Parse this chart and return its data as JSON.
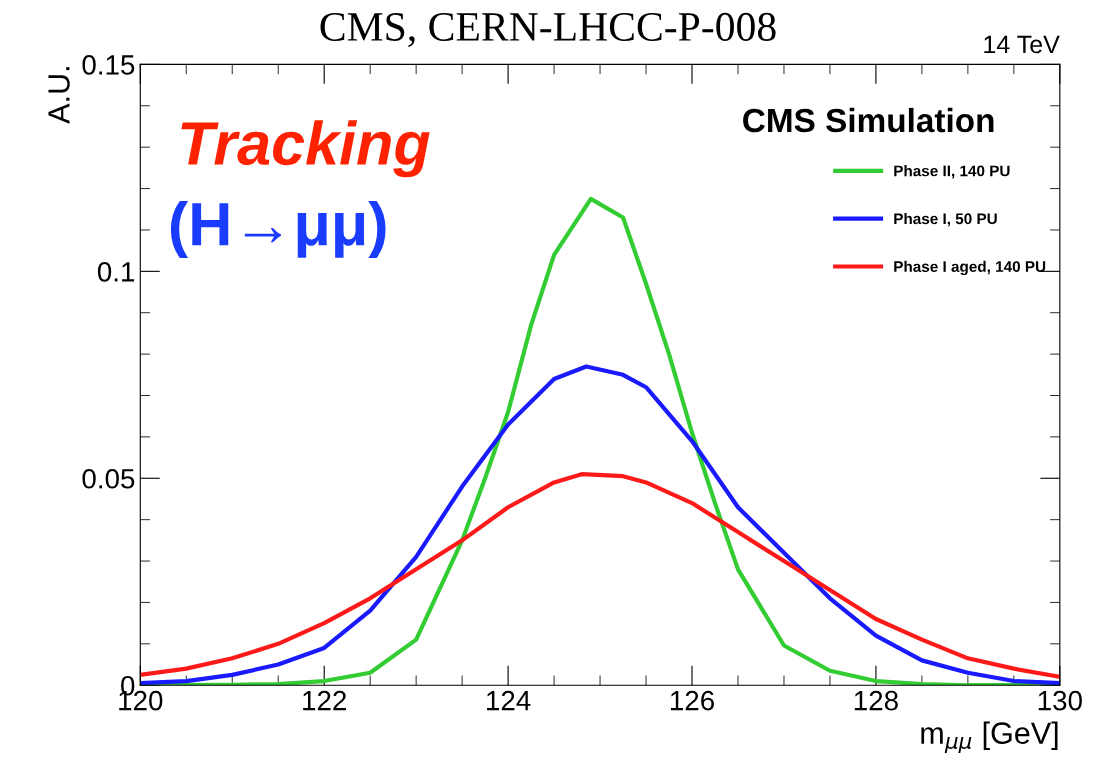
{
  "chart_data": {
    "type": "line",
    "title": "CMS, CERN-LHCC-P-008",
    "xlabel": "m$_{μμ}$ [GeV]",
    "ylabel": "A.U.",
    "annotations": [
      "14 TeV",
      "CMS Simulation",
      "Tracking",
      "(H→μμ)"
    ],
    "xlim": [
      120,
      130
    ],
    "xticks": [
      120,
      122,
      124,
      126,
      128,
      130
    ],
    "ylim": [
      0,
      0.15
    ],
    "yticks": [
      0,
      0.05,
      0.1,
      0.15
    ],
    "legend": "top right",
    "grid": false,
    "line_style": "solid",
    "marker": "none",
    "series": [
      {
        "name": "Phase II, 140 PU",
        "color": "#33cc33",
        "x": [
          120,
          121,
          121.5,
          122,
          122.5,
          123,
          123.5,
          123.75,
          124,
          124.25,
          124.5,
          124.9,
          125.25,
          125.5,
          125.75,
          126,
          126.25,
          126.5,
          127,
          127.5,
          128,
          128.5,
          129,
          130
        ],
        "values": [
          0,
          0.0001,
          0.0003,
          0.001,
          0.003,
          0.011,
          0.035,
          0.05,
          0.066,
          0.087,
          0.104,
          0.1175,
          0.113,
          0.097,
          0.08,
          0.061,
          0.044,
          0.028,
          0.0096,
          0.0035,
          0.001,
          0.0003,
          0,
          0
        ]
      },
      {
        "name": "Phase I, 50 PU",
        "color": "#1a1aff",
        "x": [
          120,
          120.5,
          121,
          121.5,
          122,
          122.5,
          123,
          123.5,
          124,
          124.5,
          124.85,
          125.25,
          125.5,
          126,
          126.5,
          127,
          127.5,
          128,
          128.5,
          129,
          129.5,
          130
        ],
        "values": [
          0.0005,
          0.001,
          0.0025,
          0.005,
          0.009,
          0.018,
          0.031,
          0.048,
          0.063,
          0.074,
          0.077,
          0.075,
          0.072,
          0.059,
          0.043,
          0.032,
          0.021,
          0.012,
          0.006,
          0.003,
          0.001,
          0.0005
        ]
      },
      {
        "name": "Phase I aged, 140 PU",
        "color": "#ff1a1a",
        "x": [
          120,
          120.5,
          121,
          121.5,
          122,
          122.5,
          123,
          123.5,
          124,
          124.5,
          124.8,
          125.25,
          125.5,
          126,
          126.5,
          127,
          127.5,
          128,
          128.5,
          129,
          129.5,
          130
        ],
        "values": [
          0.0025,
          0.004,
          0.0065,
          0.01,
          0.015,
          0.021,
          0.028,
          0.035,
          0.043,
          0.049,
          0.051,
          0.0505,
          0.049,
          0.044,
          0.037,
          0.03,
          0.023,
          0.016,
          0.011,
          0.0065,
          0.004,
          0.002
        ]
      }
    ]
  }
}
